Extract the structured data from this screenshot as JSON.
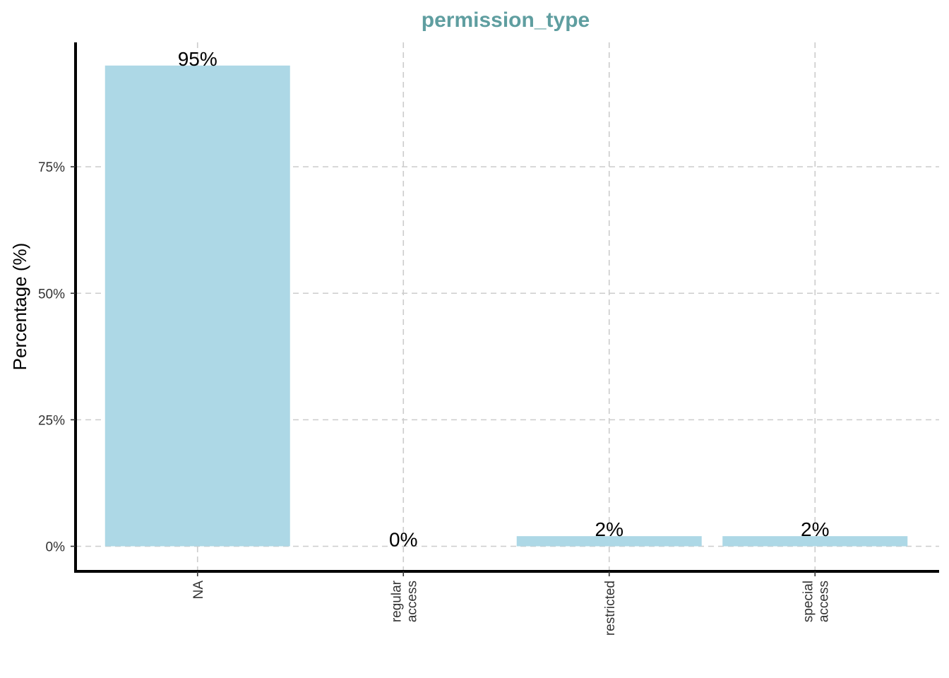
{
  "chart_data": {
    "type": "bar",
    "title": "permission_type",
    "xlabel": "",
    "ylabel": "Percentage (%)",
    "categories": [
      [
        "NA"
      ],
      [
        "regular",
        "access"
      ],
      [
        "restricted"
      ],
      [
        "special",
        "access"
      ]
    ],
    "values": [
      95,
      0,
      2,
      2
    ],
    "data_labels": [
      "95%",
      "0%",
      "2%",
      "2%"
    ],
    "ylim": [
      0,
      100
    ],
    "yticks": [
      0,
      25,
      50,
      75
    ],
    "ytick_labels": [
      "0%",
      "25%",
      "50%",
      "75%"
    ],
    "grid": true,
    "bar_color": "#add8e6",
    "title_color": "#5f9ea0"
  }
}
